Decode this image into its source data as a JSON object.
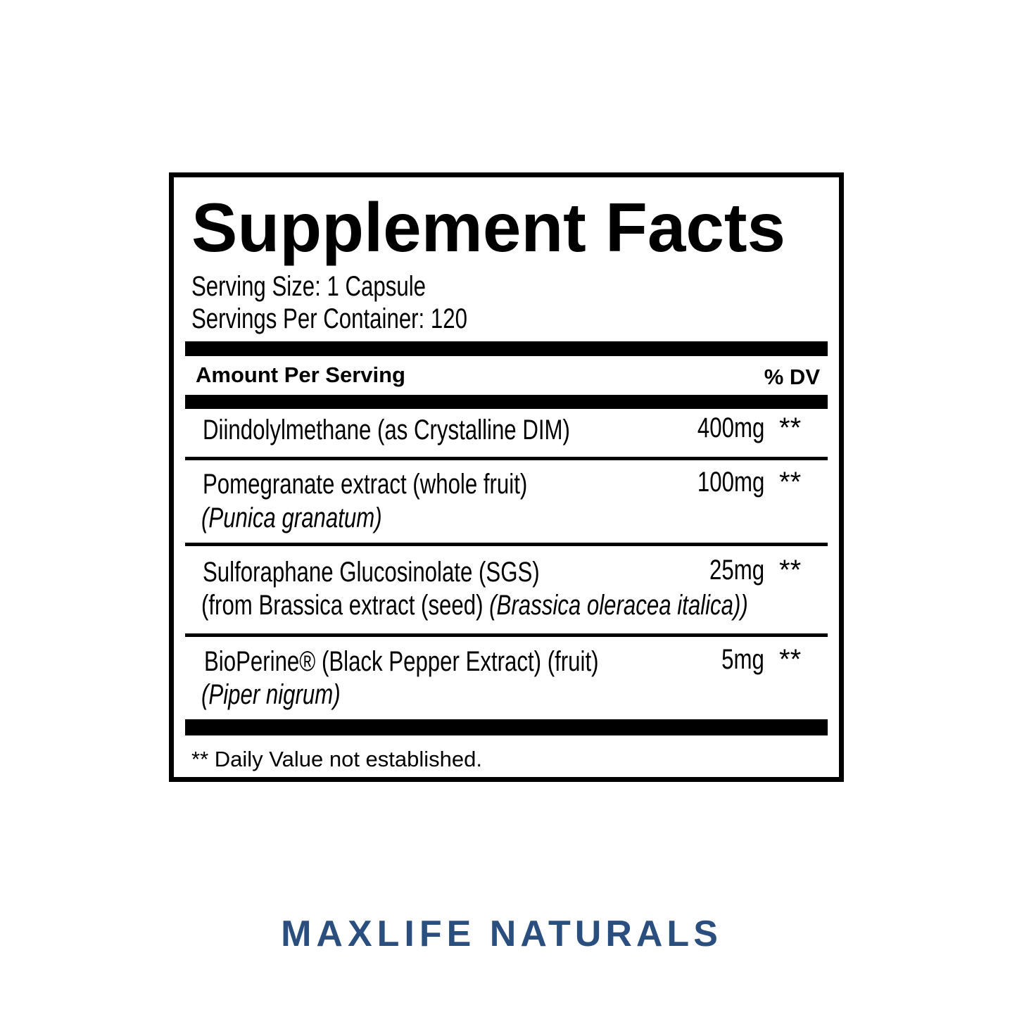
{
  "title": "Supplement Facts",
  "serving_size": "Serving Size: 1 Capsule",
  "servings_per_container": "Servings Per Container: 120",
  "header": {
    "amount": "Amount Per Serving",
    "dv": "% DV"
  },
  "rows": [
    {
      "name": "Diindolylmethane (as Crystalline DIM)",
      "amount": "400mg",
      "dv": "**"
    },
    {
      "name": "Pomegranate extract (whole fruit)",
      "latin": "(Punica granatum)",
      "amount": "100mg",
      "dv": "**"
    },
    {
      "name": "Sulforaphane Glucosinolate (SGS)",
      "line2": "(from Brassica extract (seed) ",
      "latin": "(Brassica oleracea italica))",
      "amount": "25mg",
      "dv": "**"
    },
    {
      "name": "BioPerine® (Black Pepper Extract) (fruit)",
      "latin": "(Piper nigrum)",
      "amount": "5mg",
      "dv": "**"
    }
  ],
  "footnote": "** Daily Value not established.",
  "brand": {
    "bold": "MAXLIFE",
    "rest": "NATURALS",
    "color": "#2a4f7f"
  }
}
